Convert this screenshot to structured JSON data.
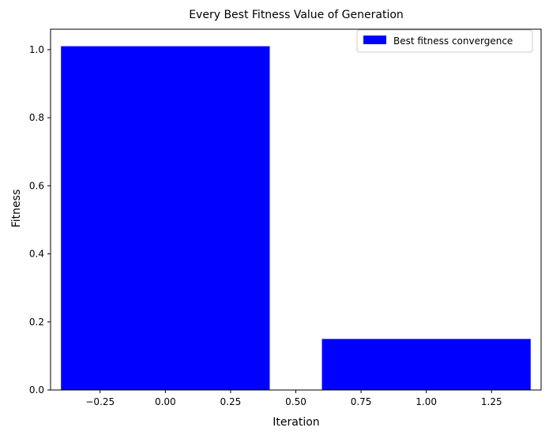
{
  "chart_data": {
    "type": "bar",
    "title": "Every Best Fitness Value of Generation",
    "xlabel": "Iteration",
    "ylabel": "Fitness",
    "x": [
      0,
      1
    ],
    "values": [
      1.01,
      0.15
    ],
    "bar_width": 0.8,
    "xlim": [
      -0.44,
      1.44
    ],
    "ylim": [
      0,
      1.06
    ],
    "xticks": [
      -0.25,
      0.0,
      0.25,
      0.5,
      0.75,
      1.0,
      1.25
    ],
    "xtick_labels": [
      "−0.25",
      "0.00",
      "0.25",
      "0.50",
      "0.75",
      "1.00",
      "1.25"
    ],
    "yticks": [
      0.0,
      0.2,
      0.4,
      0.6,
      0.8,
      1.0
    ],
    "ytick_labels": [
      "0.0",
      "0.2",
      "0.4",
      "0.6",
      "0.8",
      "1.0"
    ],
    "series": [
      {
        "name": "Best fitness convergence",
        "color": "#0000ff"
      }
    ],
    "grid": false,
    "legend_position": "top-right"
  }
}
